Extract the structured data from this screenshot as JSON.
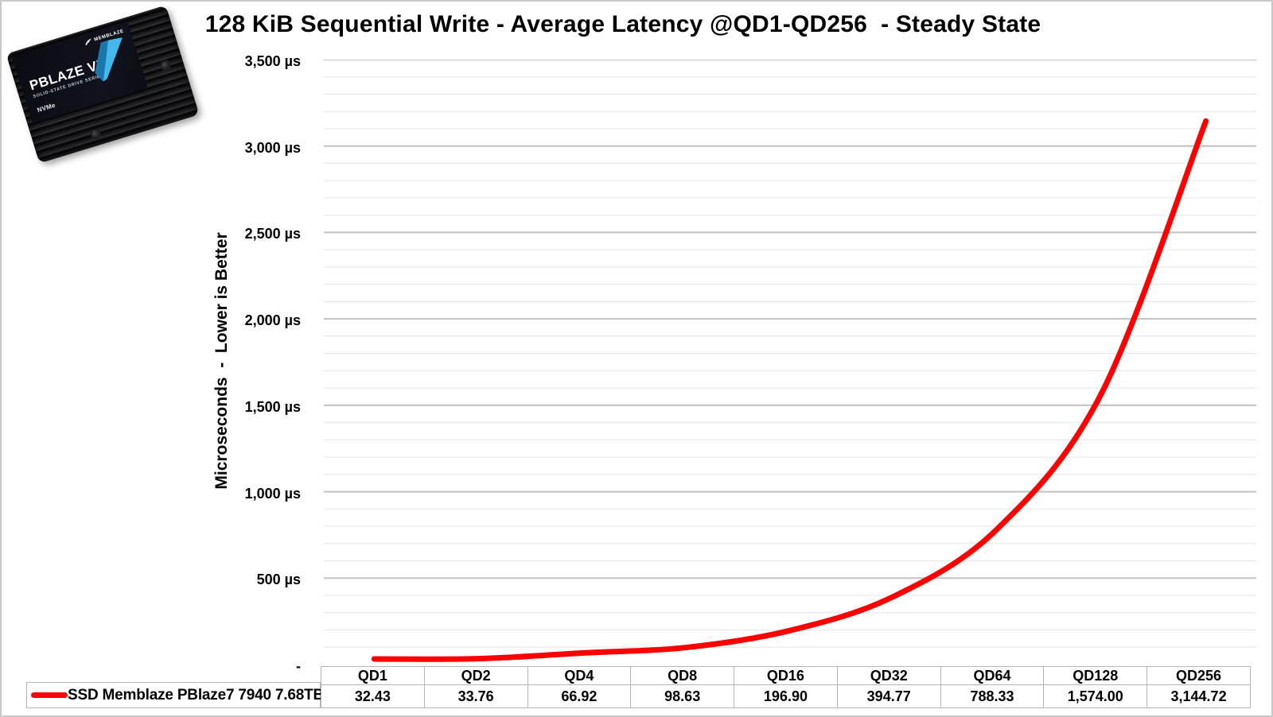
{
  "product_badge": {
    "brand": "MEMBLAZE",
    "model": "PBLAZE VII",
    "series": "SOLID-STATE DRIVE SERIES",
    "nvme": "NVMe"
  },
  "chart_data": {
    "type": "line",
    "title": "128 KiB Sequential Write - Average Latency @QD1-QD256  - Steady State",
    "ylabel": "Microseconds  -  Lower is Better",
    "xlabel": "",
    "categories": [
      "QD1",
      "QD2",
      "QD4",
      "QD8",
      "QD16",
      "QD32",
      "QD64",
      "QD128",
      "QD256"
    ],
    "series": [
      {
        "name": "SSD Memblaze PBlaze7 7940 7.68TB",
        "color": "#ff0000",
        "values": [
          32.43,
          33.76,
          66.92,
          98.63,
          196.9,
          394.77,
          788.33,
          1574.0,
          3144.72
        ],
        "values_display": [
          "32.43",
          "33.76",
          "66.92",
          "98.63",
          "196.90",
          "394.77",
          "788.33",
          "1,574.00",
          "3,144.72"
        ]
      }
    ],
    "y_axis": {
      "min": 0,
      "max": 3500,
      "major_step": 500,
      "minor_step": 100,
      "tick_labels": [
        "3,500 µs",
        "3,000 µs",
        "2,500 µs",
        "2,000 µs",
        "1,500 µs",
        "1,000 µs",
        "500 µs",
        "-"
      ]
    },
    "grid": true,
    "legend_position": "bottom-table",
    "colors": {
      "line": "#ff0000",
      "major_grid": "#c2c2c2",
      "minor_grid": "#e9e9e9",
      "table_border": "#b5b5b5"
    }
  }
}
